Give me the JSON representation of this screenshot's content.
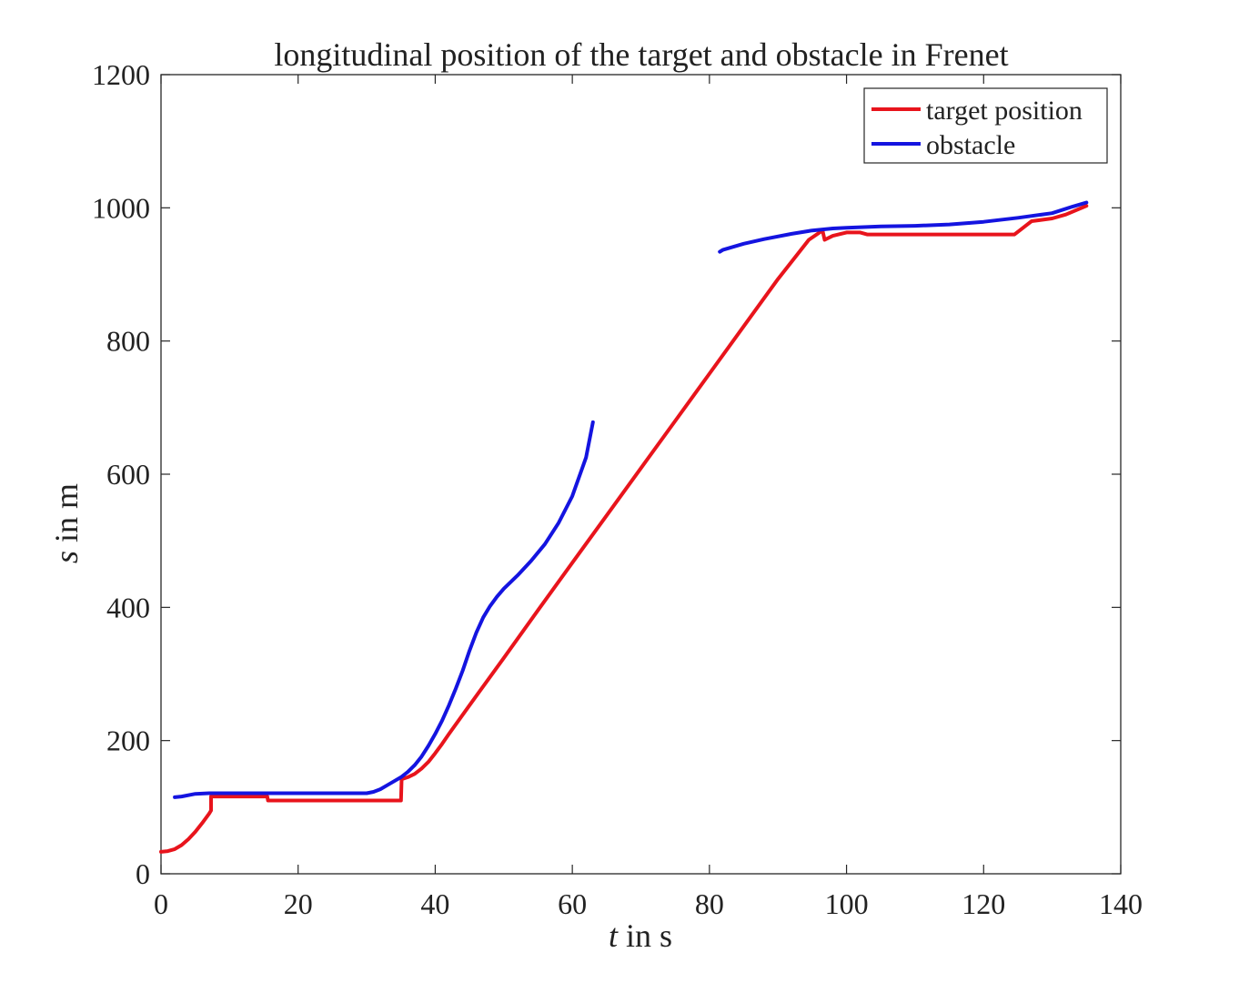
{
  "chart_data": {
    "type": "line",
    "title": "longitudinal position of the target and obstacle in Frenet",
    "xlabel_var": "t",
    "xlabel_rest": " in s",
    "ylabel_var": "s",
    "ylabel_rest": " in m",
    "xlim": [
      0,
      140
    ],
    "ylim": [
      0,
      1200
    ],
    "xticks": [
      0,
      20,
      40,
      60,
      80,
      100,
      120,
      140
    ],
    "yticks": [
      0,
      200,
      400,
      600,
      800,
      1000,
      1200
    ],
    "grid": false,
    "legend_position": "top-right",
    "series": [
      {
        "name": "target position",
        "color": "#e8141c",
        "segments": [
          [
            [
              0,
              33
            ],
            [
              1,
              34
            ],
            [
              2,
              37
            ],
            [
              3,
              43
            ],
            [
              4,
              52
            ],
            [
              5,
              63
            ],
            [
              6,
              76
            ],
            [
              7,
              90
            ],
            [
              7.3,
              95
            ],
            [
              7.3,
              116
            ],
            [
              15.5,
              116
            ],
            [
              15.6,
              110
            ],
            [
              35,
              110
            ],
            [
              35.1,
              142
            ],
            [
              36,
              145
            ],
            [
              37,
              150
            ],
            [
              38,
              158
            ],
            [
              39,
              168
            ],
            [
              40,
              181
            ],
            [
              41,
              195
            ],
            [
              42,
              210
            ],
            [
              45,
              253
            ],
            [
              50,
              324
            ],
            [
              55,
              396
            ],
            [
              60,
              467
            ],
            [
              65,
              538
            ],
            [
              70,
              609
            ],
            [
              75,
              680
            ],
            [
              80,
              751
            ],
            [
              85,
              822
            ],
            [
              90,
              893
            ],
            [
              94.5,
              952
            ],
            [
              96.5,
              966
            ],
            [
              96.8,
              952
            ],
            [
              98,
              958
            ],
            [
              100,
              963
            ],
            [
              102,
              963
            ],
            [
              103,
              960
            ],
            [
              110,
              960
            ],
            [
              120,
              960
            ],
            [
              124.5,
              960
            ],
            [
              126,
              972
            ],
            [
              127,
              980
            ],
            [
              130,
              984
            ],
            [
              132,
              990
            ],
            [
              135,
              1003
            ]
          ]
        ]
      },
      {
        "name": "obstacle",
        "color": "#1414e0",
        "segments": [
          [
            [
              2,
              115
            ],
            [
              3,
              116
            ],
            [
              5,
              120
            ],
            [
              7,
              121
            ],
            [
              10,
              121
            ],
            [
              15,
              121
            ],
            [
              20,
              121
            ],
            [
              25,
              121
            ],
            [
              30,
              121
            ],
            [
              31,
              123
            ],
            [
              32,
              127
            ],
            [
              33,
              133
            ],
            [
              34,
              139
            ],
            [
              35,
              145
            ],
            [
              36,
              153
            ],
            [
              37,
              163
            ],
            [
              38,
              176
            ],
            [
              39,
              192
            ],
            [
              40,
              210
            ],
            [
              41,
              230
            ],
            [
              42,
              253
            ],
            [
              43,
              278
            ],
            [
              44,
              305
            ],
            [
              45,
              335
            ],
            [
              46,
              362
            ],
            [
              47,
              385
            ],
            [
              48,
              402
            ],
            [
              49,
              416
            ],
            [
              50,
              428
            ],
            [
              52,
              448
            ],
            [
              54,
              470
            ],
            [
              56,
              495
            ],
            [
              58,
              527
            ],
            [
              60,
              567
            ],
            [
              62,
              625
            ],
            [
              63,
              678
            ]
          ],
          [
            [
              81.5,
              934
            ],
            [
              82,
              937
            ],
            [
              85,
              946
            ],
            [
              88,
              953
            ],
            [
              92,
              961
            ],
            [
              95,
              966
            ],
            [
              98,
              969
            ],
            [
              100,
              970
            ],
            [
              105,
              972
            ],
            [
              110,
              973
            ],
            [
              115,
              975
            ],
            [
              120,
              979
            ],
            [
              125,
              985
            ],
            [
              130,
              992
            ],
            [
              133,
              1002
            ],
            [
              135,
              1008
            ]
          ]
        ]
      }
    ]
  }
}
